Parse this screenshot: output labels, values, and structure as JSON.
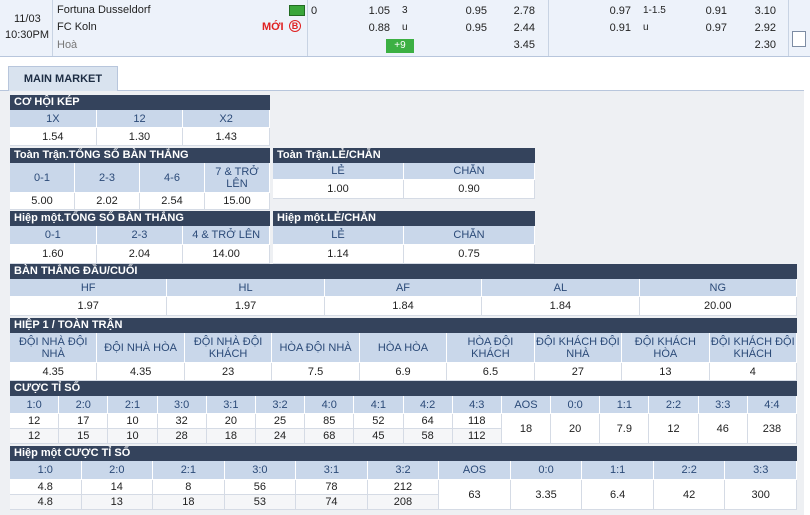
{
  "match": {
    "date": "11/03",
    "time": "10:30PM",
    "home": "Fortuna Dusseldorf",
    "away": "FC Koln",
    "draw": "Hoà",
    "new_label": "MỚI",
    "new_icon": "B",
    "more_bets": "+9",
    "full_time": {
      "handicap": "0",
      "handicap_home": "1.05",
      "handicap_away": "0.88",
      "over_under": "3",
      "under_mark": "u",
      "over_odds": "0.95",
      "under_odds": "0.95",
      "home_win": "2.78",
      "away_win": "2.44",
      "draw_odds": "3.45"
    },
    "first_half": {
      "handicap_home": "0.97",
      "handicap_away": "0.91",
      "over_under": "1-1.5",
      "under_mark": "u",
      "over_odds": "0.91",
      "under_odds": "0.97",
      "home_win": "3.10",
      "away_win": "2.92",
      "draw_odds": "2.30"
    }
  },
  "tab": "MAIN MARKET",
  "markets": [
    {
      "title": "CƠ HỘI KÉP",
      "columns": [
        {
          "label": "1X",
          "values": [
            "1.54"
          ]
        },
        {
          "label": "12",
          "values": [
            "1.30"
          ]
        },
        {
          "label": "X2",
          "values": [
            "1.43"
          ]
        }
      ]
    },
    {
      "title": "Toàn Trận.TỔNG SỐ BÀN THẮNG",
      "columns": [
        {
          "label": "0-1",
          "values": [
            "5.00"
          ]
        },
        {
          "label": "2-3",
          "values": [
            "2.02"
          ]
        },
        {
          "label": "4-6",
          "values": [
            "2.54"
          ]
        },
        {
          "label": "7 & TRỞ LÊN",
          "values": [
            "15.00"
          ]
        }
      ]
    },
    {
      "title": "Toàn Trận.LẺ/CHẴN",
      "columns": [
        {
          "label": "LẺ",
          "values": [
            "1.00"
          ]
        },
        {
          "label": "CHẴN",
          "values": [
            "0.90"
          ]
        }
      ]
    },
    {
      "title": "Hiệp một.TỔNG SỐ BÀN THẮNG",
      "columns": [
        {
          "label": "0-1",
          "values": [
            "1.60"
          ]
        },
        {
          "label": "2-3",
          "values": [
            "2.04"
          ]
        },
        {
          "label": "4 & TRỞ LÊN",
          "values": [
            "14.00"
          ]
        }
      ]
    },
    {
      "title": "Hiệp một.LẺ/CHẴN",
      "columns": [
        {
          "label": "LẺ",
          "values": [
            "1.14"
          ]
        },
        {
          "label": "CHẴN",
          "values": [
            "0.75"
          ]
        }
      ]
    },
    {
      "title": "BÀN THẮNG ĐẦU/CUỐI",
      "columns": [
        {
          "label": "HF",
          "values": [
            "1.97"
          ]
        },
        {
          "label": "HL",
          "values": [
            "1.97"
          ]
        },
        {
          "label": "AF",
          "values": [
            "1.84"
          ]
        },
        {
          "label": "AL",
          "values": [
            "1.84"
          ]
        },
        {
          "label": "NG",
          "values": [
            "20.00"
          ]
        }
      ]
    },
    {
      "title": "HIỆP 1 / TOÀN TRẬN",
      "columns": [
        {
          "label": "ĐỘI NHÀ ĐỘI NHÀ",
          "values": [
            "4.35"
          ]
        },
        {
          "label": "ĐỘI NHÀ HÒA",
          "values": [
            "4.35"
          ]
        },
        {
          "label": "ĐỘI NHÀ ĐỘI KHÁCH",
          "values": [
            "23"
          ]
        },
        {
          "label": "HÒA ĐỘI NHÀ",
          "values": [
            "7.5"
          ]
        },
        {
          "label": "HÒA HÒA",
          "values": [
            "6.9"
          ]
        },
        {
          "label": "HÒA ĐỘI KHÁCH",
          "values": [
            "6.5"
          ]
        },
        {
          "label": "ĐỘI KHÁCH ĐỘI NHÀ",
          "values": [
            "27"
          ]
        },
        {
          "label": "ĐỘI KHÁCH HÒA",
          "values": [
            "13"
          ]
        },
        {
          "label": "ĐỘI KHÁCH ĐỘI KHÁCH",
          "values": [
            "4"
          ]
        }
      ]
    },
    {
      "title": "CƯỢC TỈ SỐ",
      "columns": [
        {
          "label": "1:0",
          "values": [
            "12",
            "12"
          ]
        },
        {
          "label": "2:0",
          "values": [
            "17",
            "15"
          ]
        },
        {
          "label": "2:1",
          "values": [
            "10",
            "10"
          ]
        },
        {
          "label": "3:0",
          "values": [
            "32",
            "28"
          ]
        },
        {
          "label": "3:1",
          "values": [
            "20",
            "18"
          ]
        },
        {
          "label": "3:2",
          "values": [
            "25",
            "24"
          ]
        },
        {
          "label": "4:0",
          "values": [
            "85",
            "68"
          ]
        },
        {
          "label": "4:1",
          "values": [
            "52",
            "45"
          ]
        },
        {
          "label": "4:2",
          "values": [
            "64",
            "58"
          ]
        },
        {
          "label": "4:3",
          "values": [
            "118",
            "112"
          ]
        },
        {
          "label": "AOS",
          "values": [
            "18"
          ]
        },
        {
          "label": "0:0",
          "values": [
            "20"
          ]
        },
        {
          "label": "1:1",
          "values": [
            "7.9"
          ]
        },
        {
          "label": "2:2",
          "values": [
            "12"
          ]
        },
        {
          "label": "3:3",
          "values": [
            "46"
          ]
        },
        {
          "label": "4:4",
          "values": [
            "238"
          ]
        }
      ]
    },
    {
      "title": "Hiệp một CƯỢC TỈ SỐ",
      "columns": [
        {
          "label": "1:0",
          "values": [
            "4.8",
            "4.8"
          ]
        },
        {
          "label": "2:0",
          "values": [
            "14",
            "13"
          ]
        },
        {
          "label": "2:1",
          "values": [
            "8",
            "18"
          ]
        },
        {
          "label": "3:0",
          "values": [
            "56",
            "53"
          ]
        },
        {
          "label": "3:1",
          "values": [
            "78",
            "74"
          ]
        },
        {
          "label": "3:2",
          "values": [
            "212",
            "208"
          ]
        },
        {
          "label": "AOS",
          "values": [
            "63"
          ]
        },
        {
          "label": "0:0",
          "values": [
            "3.35"
          ]
        },
        {
          "label": "1:1",
          "values": [
            "6.4"
          ]
        },
        {
          "label": "2:2",
          "values": [
            "42"
          ]
        },
        {
          "label": "3:3",
          "values": [
            "300"
          ]
        }
      ]
    }
  ]
}
